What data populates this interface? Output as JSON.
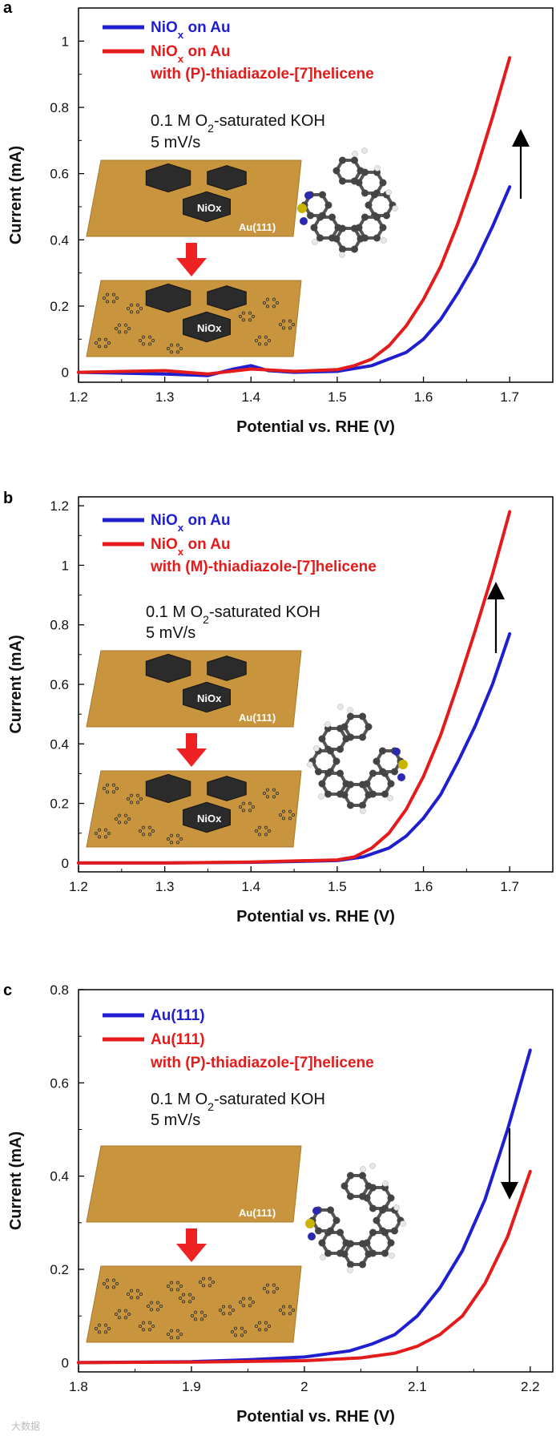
{
  "chart_data": [
    {
      "panel": "a",
      "type": "line",
      "xlabel": "Potential vs. RHE (V)",
      "ylabel": "Current (mA)",
      "xlim": [
        1.2,
        1.75
      ],
      "ylim": [
        -0.03,
        1.1
      ],
      "xticks": [
        1.2,
        1.3,
        1.4,
        1.5,
        1.6,
        1.7
      ],
      "xtick_labels": [
        "1.2",
        "1.3",
        "1.4",
        "1.5",
        "1.6",
        "1.7"
      ],
      "yticks": [
        0,
        0.2,
        0.4,
        0.6,
        0.8,
        1
      ],
      "ytick_labels": [
        "0",
        "0.2",
        "0.4",
        "0.6",
        "0.8",
        "1"
      ],
      "legend": [
        {
          "text": "NiOx on Au",
          "color": "#1f1fd0",
          "line2": ""
        },
        {
          "text": "NiOx on Au",
          "color": "#e41b1b",
          "line2": "with (P)-thiadiazole-[7]helicene"
        }
      ],
      "annotation_line1": "0.1 M O2-saturated KOH",
      "annotation_line2": "5 mV/s",
      "arrow_direction": "up",
      "inset_labels": {
        "top_nio": "NiOx",
        "substrate": "Au(111)",
        "bottom_nio": "NiOx"
      },
      "series": [
        {
          "name": "NiOx on Au",
          "color": "#1f1fd0",
          "x": [
            1.2,
            1.3,
            1.35,
            1.38,
            1.4,
            1.42,
            1.45,
            1.5,
            1.54,
            1.58,
            1.6,
            1.62,
            1.64,
            1.66,
            1.68,
            1.7
          ],
          "y": [
            0.0,
            -0.005,
            -0.01,
            0.01,
            0.02,
            0.005,
            0.0,
            0.003,
            0.02,
            0.06,
            0.1,
            0.16,
            0.24,
            0.33,
            0.44,
            0.56
          ]
        },
        {
          "name": "NiOx on Au with (P)-thiadiazole-[7]helicene",
          "color": "#e41b1b",
          "x": [
            1.2,
            1.3,
            1.35,
            1.4,
            1.45,
            1.5,
            1.52,
            1.54,
            1.56,
            1.58,
            1.6,
            1.62,
            1.64,
            1.66,
            1.68,
            1.7
          ],
          "y": [
            0.0,
            0.005,
            -0.005,
            0.01,
            0.003,
            0.008,
            0.02,
            0.04,
            0.08,
            0.14,
            0.22,
            0.32,
            0.45,
            0.6,
            0.77,
            0.95
          ]
        }
      ]
    },
    {
      "panel": "b",
      "type": "line",
      "xlabel": "Potential vs. RHE (V)",
      "ylabel": "Current (mA)",
      "xlim": [
        1.2,
        1.75
      ],
      "ylim": [
        -0.03,
        1.23
      ],
      "xticks": [
        1.2,
        1.3,
        1.4,
        1.5,
        1.6,
        1.7
      ],
      "xtick_labels": [
        "1.2",
        "1.3",
        "1.4",
        "1.5",
        "1.6",
        "1.7"
      ],
      "yticks": [
        0,
        0.2,
        0.4,
        0.6,
        0.8,
        1,
        1.2
      ],
      "ytick_labels": [
        "0",
        "0.2",
        "0.4",
        "0.6",
        "0.8",
        "1",
        "1.2"
      ],
      "legend": [
        {
          "text": "NiOx on Au",
          "color": "#1f1fd0",
          "line2": ""
        },
        {
          "text": "NiOx on Au",
          "color": "#e41b1b",
          "line2": "with (M)-thiadiazole-[7]helicene"
        }
      ],
      "annotation_line1": "0.1 M O2-saturated KOH",
      "annotation_line2": "5 mV/s",
      "arrow_direction": "up",
      "inset_labels": {
        "top_nio": "NiOx",
        "substrate": "Au(111)",
        "bottom_nio": "NiOx"
      },
      "series": [
        {
          "name": "NiOx on Au",
          "color": "#1f1fd0",
          "x": [
            1.2,
            1.3,
            1.4,
            1.5,
            1.53,
            1.56,
            1.58,
            1.6,
            1.62,
            1.64,
            1.66,
            1.68,
            1.7
          ],
          "y": [
            0.0,
            0.0,
            0.002,
            0.008,
            0.02,
            0.05,
            0.09,
            0.15,
            0.23,
            0.34,
            0.46,
            0.6,
            0.77
          ]
        },
        {
          "name": "NiOx on Au with (M)-thiadiazole-[7]helicene",
          "color": "#e41b1b",
          "x": [
            1.2,
            1.3,
            1.4,
            1.5,
            1.52,
            1.54,
            1.56,
            1.58,
            1.6,
            1.62,
            1.64,
            1.66,
            1.68,
            1.7
          ],
          "y": [
            0.0,
            0.0,
            0.003,
            0.01,
            0.02,
            0.05,
            0.1,
            0.18,
            0.29,
            0.43,
            0.6,
            0.78,
            0.97,
            1.18
          ]
        }
      ]
    },
    {
      "panel": "c",
      "type": "line",
      "xlabel": "Potential vs. RHE (V)",
      "ylabel": "Current (mA)",
      "xlim": [
        1.8,
        2.22
      ],
      "ylim": [
        -0.02,
        0.8
      ],
      "xticks": [
        1.8,
        1.9,
        2.0,
        2.1,
        2.2
      ],
      "xtick_labels": [
        "1.8",
        "1.9",
        "2",
        "2.1",
        "2.2"
      ],
      "yticks": [
        0,
        0.2,
        0.4,
        0.6,
        0.8
      ],
      "ytick_labels": [
        "0",
        "0.2",
        "0.4",
        "0.6",
        "0.8"
      ],
      "legend": [
        {
          "text": "Au(111)",
          "color": "#1f1fd0",
          "line2": ""
        },
        {
          "text": "Au(111)",
          "color": "#e41b1b",
          "line2": "with (P)-thiadiazole-[7]helicene"
        }
      ],
      "annotation_line1": "0.1 M O2-saturated KOH",
      "annotation_line2": "5 mV/s",
      "arrow_direction": "down",
      "inset_labels": {
        "top_nio": "",
        "substrate": "Au(111)",
        "bottom_nio": ""
      },
      "series": [
        {
          "name": "Au(111)",
          "color": "#1f1fd0",
          "x": [
            1.8,
            1.9,
            1.95,
            2.0,
            2.04,
            2.06,
            2.08,
            2.1,
            2.12,
            2.14,
            2.16,
            2.18,
            2.2
          ],
          "y": [
            0.0,
            0.002,
            0.006,
            0.012,
            0.025,
            0.04,
            0.06,
            0.1,
            0.16,
            0.24,
            0.35,
            0.5,
            0.67
          ]
        },
        {
          "name": "Au(111) with (P)-thiadiazole-[7]helicene",
          "color": "#e41b1b",
          "x": [
            1.8,
            1.9,
            2.0,
            2.05,
            2.08,
            2.1,
            2.12,
            2.14,
            2.16,
            2.18,
            2.2
          ],
          "y": [
            0.0,
            0.001,
            0.004,
            0.01,
            0.02,
            0.035,
            0.06,
            0.1,
            0.17,
            0.27,
            0.41
          ]
        }
      ]
    }
  ],
  "panel_labels": [
    "a",
    "b",
    "c"
  ],
  "watermark": "大数据"
}
